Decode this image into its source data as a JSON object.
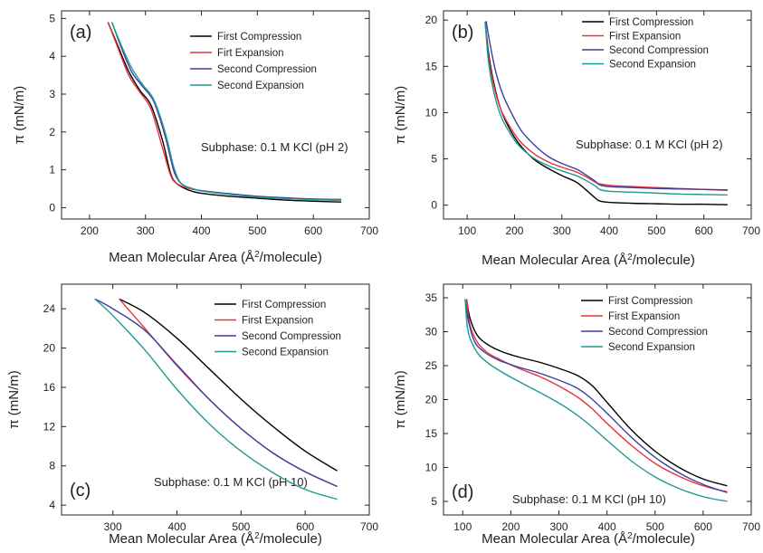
{
  "chart_data": [
    {
      "type": "line",
      "panel_label": "(a)",
      "xlabel": "Mean Molecular Area (Å²/molecule)",
      "xlabel_parts": [
        "Mean Molecular Area (Å",
        "2",
        "/molecule)"
      ],
      "ylabel": "π (mN/m)",
      "xlim": [
        150,
        700
      ],
      "ylim": [
        -0.3,
        5.2
      ],
      "xticks": [
        200,
        300,
        400,
        500,
        600,
        700
      ],
      "yticks": [
        0,
        1,
        2,
        3,
        4,
        5
      ],
      "annotation": "Subphase: 0.1 M KCl (pH 2)",
      "legend_position": "right-middle",
      "series": [
        {
          "name": "First Compression",
          "color": "#000000",
          "x": [
            233,
            250,
            270,
            290,
            310,
            330,
            345,
            355,
            365,
            380,
            400,
            450,
            500,
            550,
            600,
            650
          ],
          "y": [
            4.9,
            4.3,
            3.6,
            3.1,
            2.7,
            1.8,
            0.9,
            0.65,
            0.55,
            0.45,
            0.38,
            0.3,
            0.25,
            0.2,
            0.17,
            0.15
          ]
        },
        {
          "name": "Firt Expansion",
          "color": "#e8333c",
          "x": [
            233,
            250,
            270,
            290,
            310,
            330,
            345,
            355,
            365,
            380,
            400,
            450,
            500,
            550,
            600,
            650
          ],
          "y": [
            4.9,
            4.25,
            3.5,
            3.05,
            2.6,
            1.6,
            0.85,
            0.65,
            0.57,
            0.5,
            0.45,
            0.36,
            0.3,
            0.26,
            0.23,
            0.22
          ]
        },
        {
          "name": "Second Compression",
          "color": "#3b3f9e",
          "x": [
            240,
            255,
            275,
            295,
            315,
            335,
            350,
            360,
            370,
            385,
            400,
            450,
            500,
            550,
            600,
            650
          ],
          "y": [
            4.9,
            4.3,
            3.6,
            3.2,
            2.8,
            1.9,
            1.0,
            0.7,
            0.58,
            0.5,
            0.45,
            0.37,
            0.3,
            0.26,
            0.22,
            0.2
          ]
        },
        {
          "name": "Second Expansion",
          "color": "#1f9a94",
          "x": [
            240,
            255,
            275,
            295,
            315,
            335,
            350,
            360,
            370,
            385,
            400,
            450,
            500,
            550,
            600,
            650
          ],
          "y": [
            4.9,
            4.35,
            3.7,
            3.25,
            2.85,
            2.0,
            1.1,
            0.72,
            0.58,
            0.5,
            0.44,
            0.35,
            0.28,
            0.24,
            0.21,
            0.2
          ]
        }
      ]
    },
    {
      "type": "line",
      "panel_label": "(b)",
      "xlabel": "Mean Molecular Area (Å²/molecule)",
      "xlabel_parts": [
        "Mean Molecular Area (Å",
        "2",
        "/molecule)"
      ],
      "ylabel": "π (mN/m)",
      "xlim": [
        50,
        700
      ],
      "ylim": [
        -1.5,
        21
      ],
      "xticks": [
        100,
        200,
        300,
        400,
        500,
        600,
        700
      ],
      "yticks": [
        0,
        5,
        10,
        15,
        20
      ],
      "annotation": "Subphase: 0.1 M KCl (pH 2)",
      "legend_position": "top-right",
      "series": [
        {
          "name": "First Compression",
          "color": "#000000",
          "x": [
            138,
            145,
            155,
            170,
            190,
            210,
            240,
            270,
            300,
            330,
            350,
            370,
            380,
            400,
            450,
            500,
            550,
            600,
            650
          ],
          "y": [
            19.8,
            16.5,
            13.5,
            10.5,
            8.2,
            6.6,
            5.0,
            4.0,
            3.2,
            2.5,
            1.7,
            0.8,
            0.45,
            0.3,
            0.2,
            0.15,
            0.1,
            0.1,
            0.05
          ]
        },
        {
          "name": "First Expansion",
          "color": "#e8333c",
          "x": [
            138,
            145,
            155,
            170,
            190,
            210,
            240,
            270,
            300,
            330,
            350,
            370,
            380,
            400,
            450,
            500,
            550,
            600,
            650
          ],
          "y": [
            19.8,
            16.0,
            13.2,
            10.5,
            8.5,
            7.0,
            5.6,
            4.7,
            4.1,
            3.6,
            3.1,
            2.5,
            2.3,
            2.15,
            2.0,
            1.9,
            1.8,
            1.7,
            1.6
          ]
        },
        {
          "name": "Second Compression",
          "color": "#3b3f9e",
          "x": [
            140,
            148,
            160,
            175,
            195,
            215,
            240,
            270,
            300,
            330,
            350,
            370,
            380,
            400,
            450,
            500,
            550,
            600,
            650
          ],
          "y": [
            19.9,
            17.5,
            14.5,
            12.0,
            9.8,
            8.0,
            6.6,
            5.3,
            4.5,
            3.9,
            3.3,
            2.6,
            2.2,
            2.0,
            1.9,
            1.8,
            1.75,
            1.7,
            1.65
          ]
        },
        {
          "name": "Second Expansion",
          "color": "#1f9a94",
          "x": [
            138,
            145,
            155,
            170,
            190,
            210,
            240,
            270,
            300,
            330,
            350,
            370,
            380,
            400,
            450,
            500,
            550,
            600,
            650
          ],
          "y": [
            19.8,
            15.5,
            12.5,
            9.8,
            7.8,
            6.4,
            5.1,
            4.3,
            3.7,
            3.2,
            2.7,
            2.1,
            1.7,
            1.5,
            1.4,
            1.3,
            1.2,
            1.15,
            1.1
          ]
        }
      ]
    },
    {
      "type": "line",
      "panel_label": "(c)",
      "xlabel": "Mean Molecular Area (Å²/molecule)",
      "xlabel_parts": [
        "Mean Molecular Area (Å",
        "2",
        "/molecule)"
      ],
      "ylabel": "π (mN/m)",
      "xlim": [
        220,
        700
      ],
      "ylim": [
        3,
        26.5
      ],
      "xticks": [
        300,
        400,
        500,
        600,
        700
      ],
      "yticks": [
        4,
        8,
        12,
        16,
        20,
        24
      ],
      "annotation": "Subphase: 0.1 M KCl (pH 10)",
      "legend_position": "top-right",
      "series": [
        {
          "name": "First Compression",
          "color": "#000000",
          "x": [
            310,
            350,
            400,
            450,
            500,
            550,
            600,
            650
          ],
          "y": [
            25,
            23.6,
            21.0,
            17.9,
            14.8,
            12.0,
            9.5,
            7.5
          ]
        },
        {
          "name": "First Expansion",
          "color": "#e8333c",
          "x": [
            310,
            350,
            400,
            450,
            500,
            550,
            600,
            650
          ],
          "y": [
            25,
            22.0,
            18.2,
            14.8,
            11.8,
            9.3,
            7.4,
            5.9
          ]
        },
        {
          "name": "Second Compression",
          "color": "#3b3f9e",
          "x": [
            272,
            300,
            350,
            400,
            450,
            500,
            550,
            600,
            650
          ],
          "y": [
            25,
            24.0,
            21.8,
            18.3,
            14.8,
            11.8,
            9.3,
            7.4,
            5.9
          ]
        },
        {
          "name": "Second Expansion",
          "color": "#1f9a94",
          "x": [
            272,
            300,
            350,
            400,
            450,
            500,
            550,
            600,
            650
          ],
          "y": [
            25,
            23.3,
            19.8,
            15.8,
            12.3,
            9.5,
            7.3,
            5.6,
            4.6
          ]
        }
      ]
    },
    {
      "type": "line",
      "panel_label": "(d)",
      "xlabel": "Mean Molecular Area (Å²/molecule)",
      "xlabel_parts": [
        "Mean Molecular Area (Å",
        "2",
        "/molecule)"
      ],
      "ylabel": "π (mN/m)",
      "xlim": [
        60,
        700
      ],
      "ylim": [
        3,
        37
      ],
      "xticks": [
        100,
        200,
        300,
        400,
        500,
        600,
        700
      ],
      "yticks": [
        5,
        10,
        15,
        20,
        25,
        30,
        35
      ],
      "annotation": "Subphase: 0.1 M KCl (pH 10)",
      "legend_position": "top-right",
      "series": [
        {
          "name": "First Compression",
          "color": "#000000",
          "x": [
            108,
            115,
            130,
            150,
            180,
            220,
            260,
            300,
            340,
            370,
            400,
            450,
            500,
            550,
            600,
            650
          ],
          "y": [
            34.8,
            32.0,
            29.5,
            28.2,
            27.1,
            26.2,
            25.5,
            24.6,
            23.5,
            22.0,
            19.6,
            15.6,
            12.4,
            10.0,
            8.3,
            7.3
          ]
        },
        {
          "name": "First Expansion",
          "color": "#e8333c",
          "x": [
            108,
            115,
            130,
            150,
            180,
            220,
            260,
            300,
            340,
            370,
            400,
            450,
            500,
            550,
            600,
            650
          ],
          "y": [
            34.8,
            31.0,
            28.5,
            27.0,
            25.8,
            24.5,
            23.4,
            22.0,
            20.3,
            18.6,
            16.5,
            13.3,
            10.6,
            8.7,
            7.3,
            6.4
          ]
        },
        {
          "name": "Second Compression",
          "color": "#3b3f9e",
          "x": [
            105,
            112,
            125,
            145,
            175,
            215,
            255,
            295,
            335,
            365,
            400,
            450,
            500,
            550,
            600,
            650
          ],
          "y": [
            34.8,
            31.5,
            28.5,
            27.0,
            25.8,
            24.8,
            24.0,
            23.0,
            21.8,
            20.3,
            18.0,
            14.5,
            11.5,
            9.2,
            7.5,
            6.3
          ]
        },
        {
          "name": "Second Expansion",
          "color": "#1f9a94",
          "x": [
            105,
            110,
            120,
            135,
            160,
            200,
            240,
            280,
            320,
            360,
            400,
            450,
            500,
            550,
            600,
            650
          ],
          "y": [
            34.8,
            30.5,
            28.2,
            26.5,
            25.0,
            23.3,
            21.8,
            20.3,
            18.6,
            16.5,
            14.0,
            11.0,
            8.6,
            6.9,
            5.7,
            5.0
          ]
        }
      ]
    }
  ]
}
